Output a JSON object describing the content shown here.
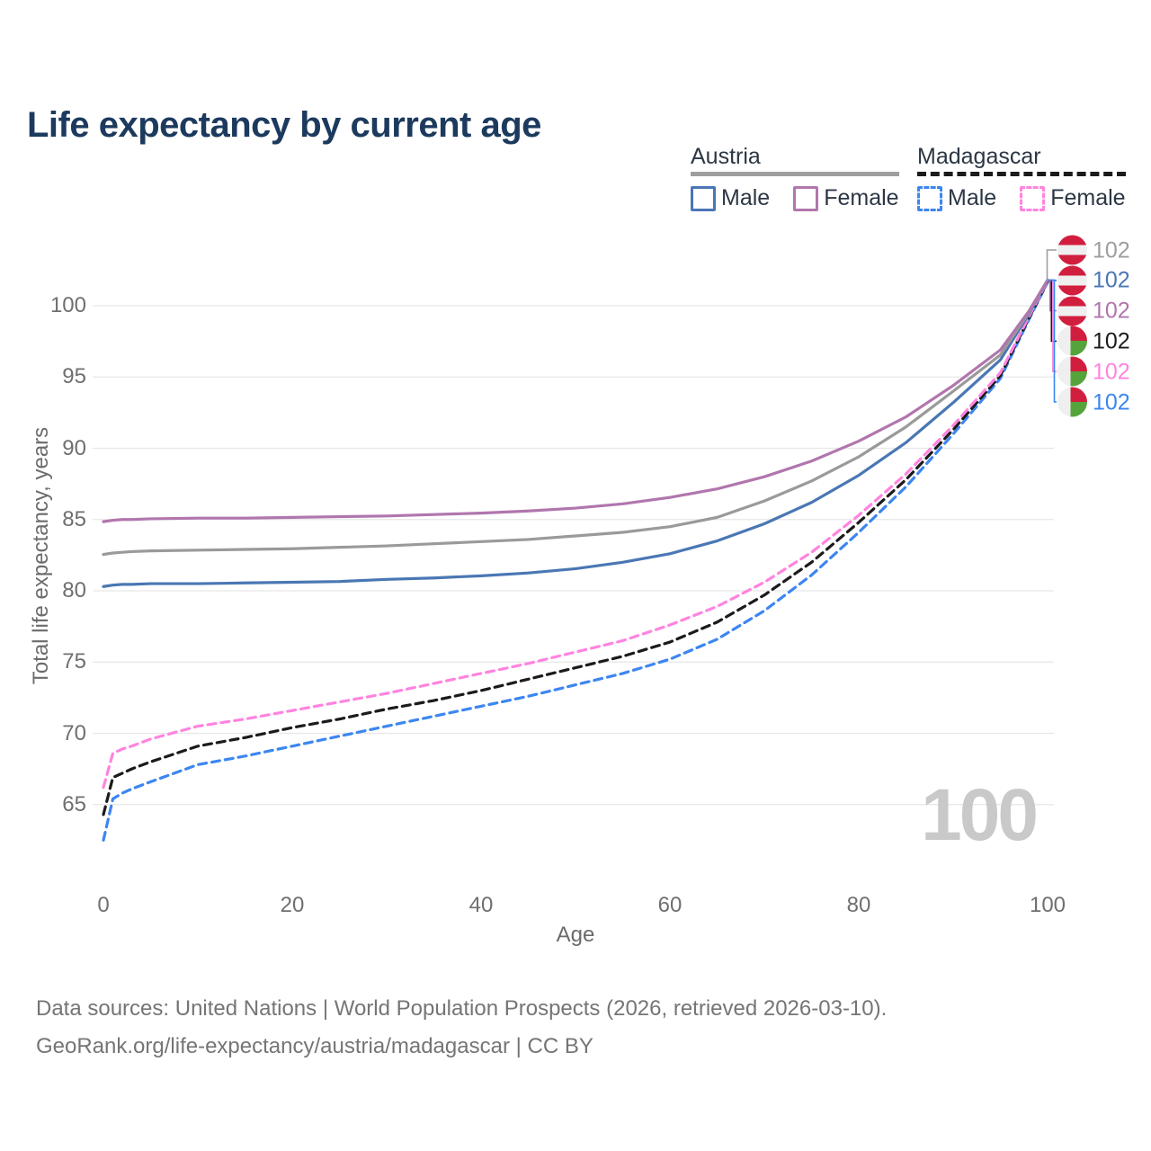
{
  "title": "Life expectancy by current age",
  "watermark_age": "100",
  "axes": {
    "x": {
      "title": "Age",
      "ticks": [
        0,
        20,
        40,
        60,
        80,
        100
      ]
    },
    "y": {
      "title": "Total life expectancy, years",
      "ticks": [
        65,
        70,
        75,
        80,
        85,
        90,
        95,
        100
      ]
    }
  },
  "legend": {
    "groups": [
      {
        "country": "Austria",
        "line_style": "solid",
        "line_color": "#9e9e9e",
        "items": [
          {
            "label": "Male",
            "color": "#4a77b4",
            "dashed": false
          },
          {
            "label": "Female",
            "color": "#b176ad",
            "dashed": false
          }
        ]
      },
      {
        "country": "Madagascar",
        "line_style": "dashed",
        "line_color": "#1b1b1b",
        "items": [
          {
            "label": "Male",
            "color": "#3d86f0",
            "dashed": true
          },
          {
            "label": "Female",
            "color": "#ff84e0",
            "dashed": true
          }
        ]
      }
    ]
  },
  "end_labels": [
    {
      "series": "austria-total",
      "flag": "austria",
      "value": "102",
      "color": "#9e9e9e"
    },
    {
      "series": "austria-male",
      "flag": "austria",
      "value": "102",
      "color": "#4a77b4"
    },
    {
      "series": "austria-female",
      "flag": "austria",
      "value": "102",
      "color": "#b176ad"
    },
    {
      "series": "madagascar-total",
      "flag": "madagascar",
      "value": "102",
      "color": "#1b1b1b"
    },
    {
      "series": "madagascar-female",
      "flag": "madagascar",
      "value": "102",
      "color": "#ff84e0"
    },
    {
      "series": "madagascar-male",
      "flag": "madagascar",
      "value": "102",
      "color": "#3d86f0"
    }
  ],
  "chart_data": {
    "type": "line",
    "title": "Life expectancy by current age",
    "xlabel": "Age",
    "ylabel": "Total life expectancy, years",
    "xlim": [
      0,
      100
    ],
    "ylim": [
      62,
      103
    ],
    "grid": "horizontal",
    "legend_position": "top-right",
    "x": [
      0,
      1,
      2,
      3,
      5,
      10,
      15,
      20,
      25,
      30,
      35,
      40,
      45,
      50,
      55,
      60,
      65,
      70,
      75,
      80,
      85,
      90,
      95,
      98,
      100
    ],
    "series": [
      {
        "name": "Madagascar Male",
        "id": "madagascar-male",
        "color": "#3d86f0",
        "dashed": true,
        "values": [
          62.5,
          65.4,
          65.8,
          66.1,
          66.6,
          67.8,
          68.4,
          69.1,
          69.8,
          70.5,
          71.2,
          71.9,
          72.6,
          73.4,
          74.2,
          75.2,
          76.6,
          78.6,
          81.1,
          84.1,
          87.3,
          91.0,
          94.9,
          99.0,
          101.65
        ]
      },
      {
        "name": "Madagascar Total",
        "id": "madagascar-total",
        "color": "#1b1b1b",
        "dashed": true,
        "values": [
          64.3,
          66.9,
          67.2,
          67.5,
          68.0,
          69.1,
          69.7,
          70.4,
          71.0,
          71.7,
          72.3,
          73.0,
          73.8,
          74.6,
          75.4,
          76.4,
          77.8,
          79.7,
          82.0,
          84.8,
          87.8,
          91.3,
          95.1,
          99.1,
          101.7
        ]
      },
      {
        "name": "Madagascar Female",
        "id": "madagascar-female",
        "color": "#ff84e0",
        "dashed": true,
        "values": [
          66.2,
          68.6,
          68.9,
          69.1,
          69.6,
          70.5,
          71.0,
          71.6,
          72.2,
          72.8,
          73.5,
          74.2,
          74.9,
          75.7,
          76.5,
          77.6,
          78.9,
          80.6,
          82.7,
          85.3,
          88.2,
          91.6,
          95.3,
          99.2,
          101.75
        ]
      },
      {
        "name": "Austria Male",
        "id": "austria-male",
        "color": "#4a77b4",
        "dashed": false,
        "values": [
          80.3,
          80.4,
          80.45,
          80.45,
          80.5,
          80.5,
          80.55,
          80.6,
          80.65,
          80.8,
          80.9,
          81.05,
          81.25,
          81.55,
          82.0,
          82.6,
          83.5,
          84.7,
          86.2,
          88.1,
          90.4,
          93.2,
          96.2,
          99.4,
          101.8
        ]
      },
      {
        "name": "Austria Total",
        "id": "austria-total",
        "color": "#9a9a9a",
        "dashed": false,
        "values": [
          82.55,
          82.65,
          82.7,
          82.75,
          82.8,
          82.85,
          82.9,
          82.95,
          83.05,
          83.15,
          83.3,
          83.45,
          83.6,
          83.85,
          84.1,
          84.5,
          85.15,
          86.3,
          87.7,
          89.4,
          91.5,
          94.0,
          96.55,
          99.5,
          101.8
        ]
      },
      {
        "name": "Austria Female",
        "id": "austria-female",
        "color": "#b176ad",
        "dashed": false,
        "values": [
          84.85,
          84.95,
          85.0,
          85.0,
          85.05,
          85.1,
          85.1,
          85.15,
          85.2,
          85.25,
          85.35,
          85.45,
          85.6,
          85.8,
          86.1,
          86.55,
          87.15,
          88.0,
          89.1,
          90.5,
          92.2,
          94.4,
          96.9,
          99.6,
          101.8
        ]
      }
    ],
    "end_value_labels": [
      102,
      102,
      102,
      102,
      102,
      102
    ]
  },
  "footer": {
    "line1": "Data sources: United Nations | World Population Prospects (2026, retrieved 2026-03-10).",
    "line2": "GeoRank.org/life-expectancy/austria/madagascar | CC BY"
  }
}
